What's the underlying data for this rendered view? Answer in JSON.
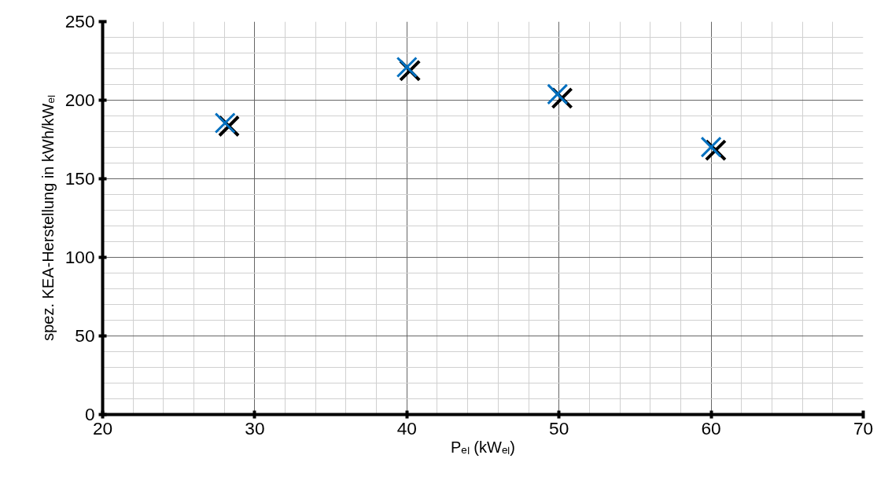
{
  "chart_data": {
    "type": "scatter",
    "xlabel": "Pₑₗ (kWₑₗ)",
    "ylabel": "spez. KEA-Herstellung in kWh/kWₑₗ",
    "series": [
      {
        "color": "#000000",
        "x": [
          28.3,
          40.2,
          50.2,
          60.3
        ],
        "values": [
          183.5,
          218.8,
          201.3,
          168.2
        ]
      },
      {
        "color": "#0070c0",
        "x": [
          28.05,
          40.0,
          49.9,
          60.0
        ],
        "values": [
          185.5,
          221,
          203.8,
          170.2
        ]
      }
    ],
    "marker": "cross",
    "grid": true,
    "xlim": [
      20,
      70
    ],
    "xticks": [
      20,
      30,
      40,
      50,
      60,
      70
    ],
    "ylim": [
      0,
      250
    ],
    "yticks": [
      0,
      50,
      100,
      150,
      200,
      250
    ]
  }
}
